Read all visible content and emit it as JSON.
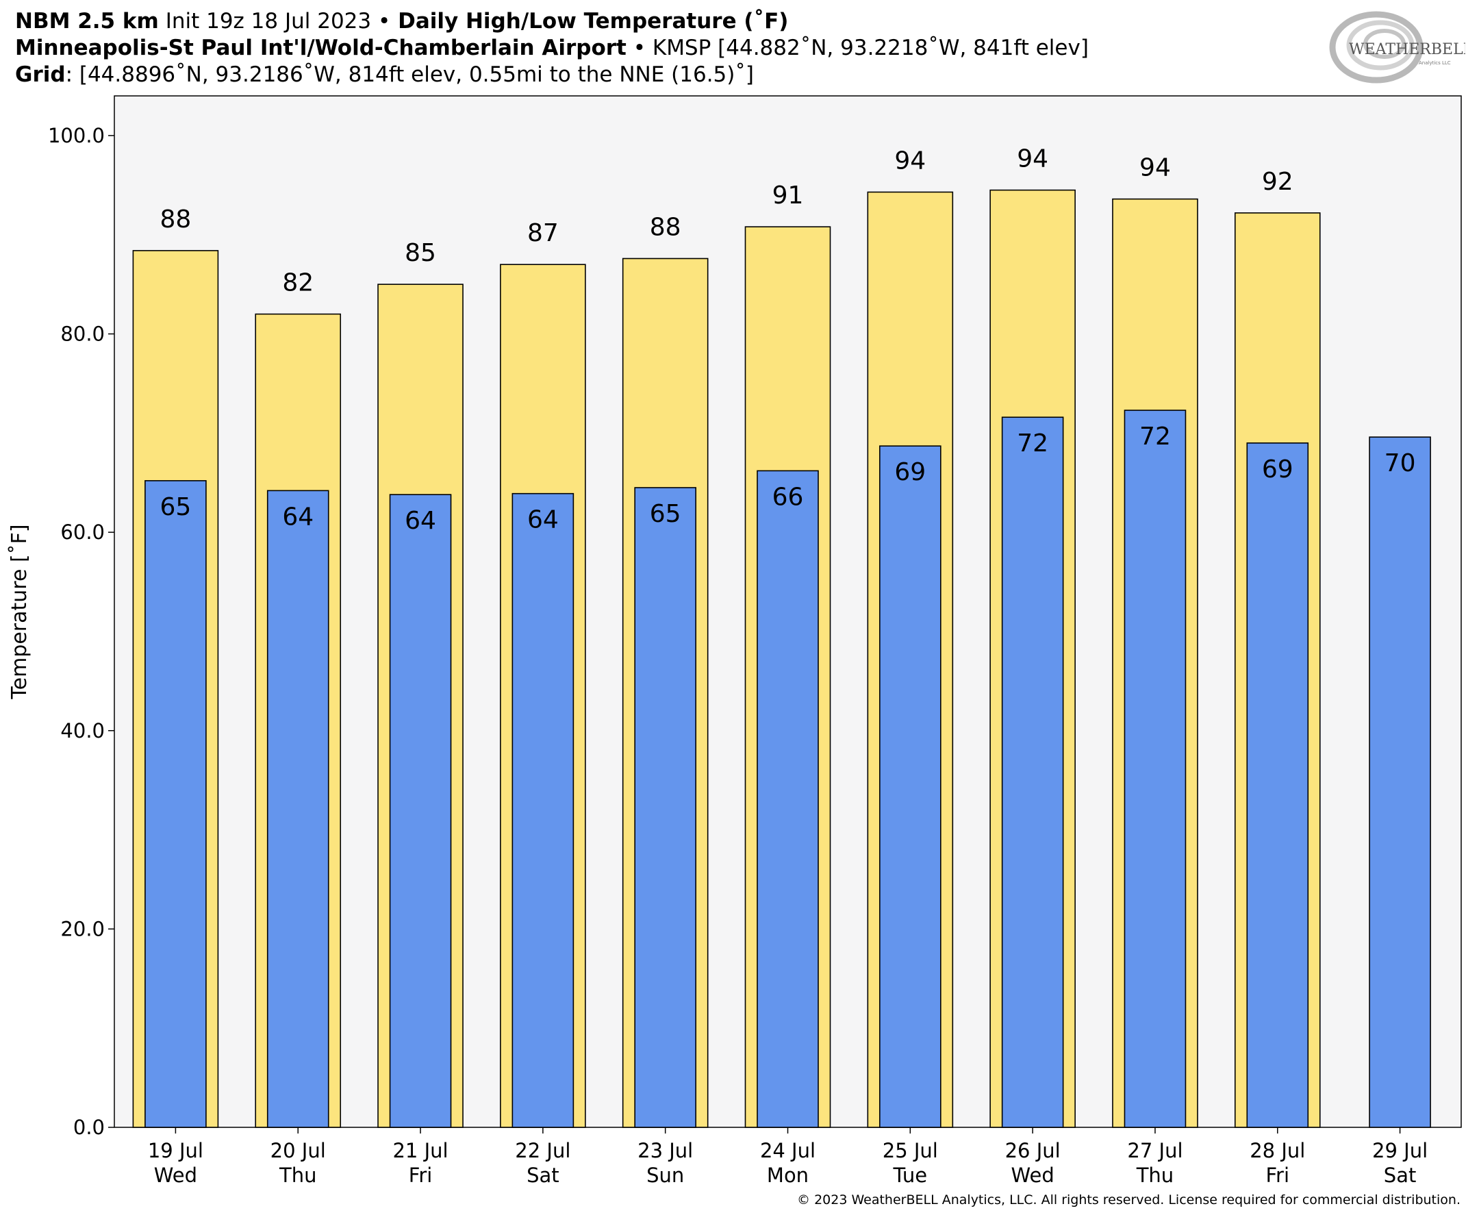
{
  "header": {
    "line1_model": "NBM 2.5 km",
    "line1_init": " Init 19z 18 Jul 2023 ",
    "line1_sep": "•",
    "line1_product": " Daily High/Low Temperature (˚F)",
    "line2_station": "Minneapolis-St Paul Int'l/Wold-Chamberlain Airport",
    "line2_sep": " • ",
    "line2_info": "KMSP [44.882˚N, 93.2218˚W, 841ft elev]",
    "line3_label": "Grid",
    "line3_info": ": [44.8896˚N, 93.2186˚W, 814ft elev, 0.55mi to the NNE (16.5)˚]"
  },
  "logo": {
    "text": "WEATHERBELL",
    "subtext": "Analytics LLC"
  },
  "copyright": "© 2023 WeatherBELL Analytics, LLC. All rights reserved. License required for commercial distribution.",
  "chart_data": {
    "type": "bar",
    "ylabel": "Temperature [˚F]",
    "ylim": [
      0,
      104
    ],
    "yticks": [
      "0.0",
      "20.0",
      "40.0",
      "60.0",
      "80.0",
      "100.0"
    ],
    "grid": false,
    "categories": [
      [
        "19 Jul",
        "Wed"
      ],
      [
        "20 Jul",
        "Thu"
      ],
      [
        "21 Jul",
        "Fri"
      ],
      [
        "22 Jul",
        "Sat"
      ],
      [
        "23 Jul",
        "Sun"
      ],
      [
        "24 Jul",
        "Mon"
      ],
      [
        "25 Jul",
        "Tue"
      ],
      [
        "26 Jul",
        "Wed"
      ],
      [
        "27 Jul",
        "Thu"
      ],
      [
        "28 Jul",
        "Fri"
      ],
      [
        "29 Jul",
        "Sat"
      ]
    ],
    "series": [
      {
        "values": [
          88.4,
          82.0,
          85.0,
          87.0,
          87.6,
          90.8,
          94.3,
          94.5,
          93.6,
          92.2,
          null
        ],
        "labels": [
          "88",
          "82",
          "85",
          "87",
          "88",
          "91",
          "94",
          "94",
          "94",
          "92",
          null
        ]
      },
      {
        "values": [
          65.2,
          64.2,
          63.8,
          63.9,
          64.5,
          66.2,
          68.7,
          71.6,
          72.3,
          69.0,
          69.6
        ],
        "labels": [
          "65",
          "64",
          "64",
          "64",
          "65",
          "66",
          "69",
          "72",
          "72",
          "69",
          "70"
        ]
      }
    ],
    "colors": {
      "high": "#fce47e",
      "low": "#6495ed",
      "plot_bg": "#f5f5f6"
    }
  }
}
